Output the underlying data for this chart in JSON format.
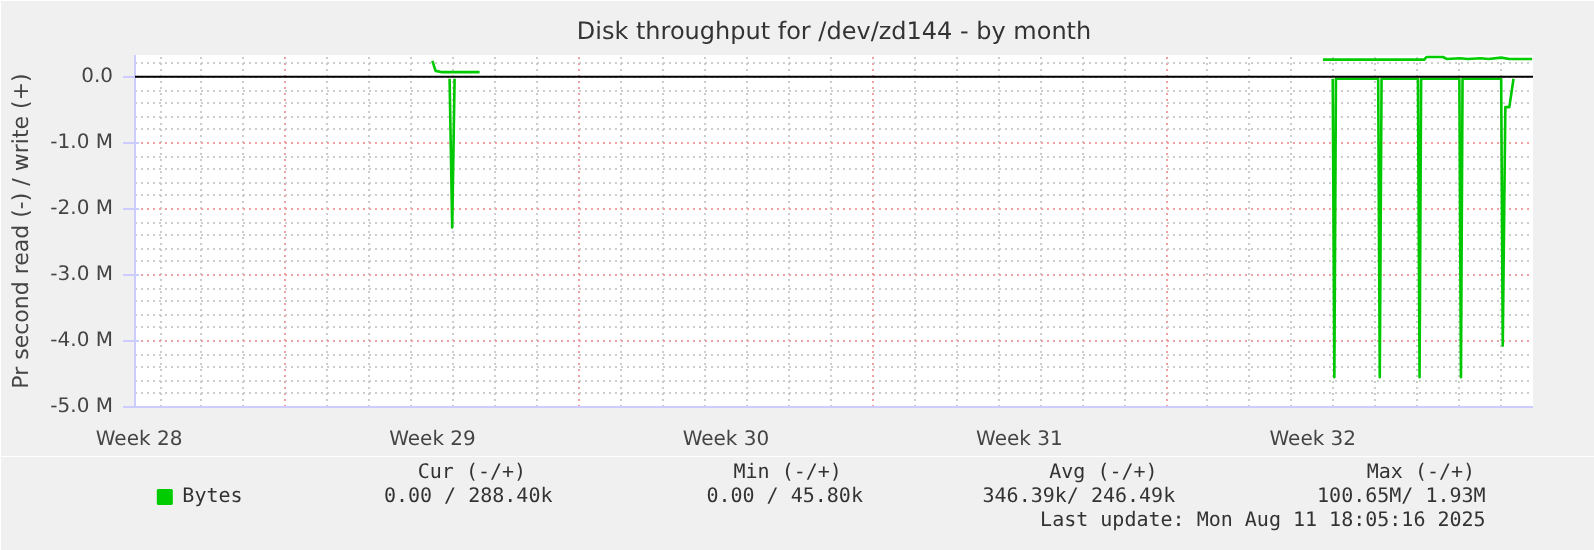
{
  "chart_data": {
    "type": "line",
    "title": "Disk throughput for /dev/zd144 - by month",
    "ylabel": "Pr second read (-) / write (+)",
    "xlim": [
      "2025-07-09T09:40",
      "2025-08-11T18:05"
    ],
    "xticks": [
      {
        "value": "2025-07-09T12:00",
        "label": "Week 28"
      },
      {
        "value": "2025-07-16T12:00",
        "label": "Week 29"
      },
      {
        "value": "2025-07-23T12:00",
        "label": "Week 30"
      },
      {
        "value": "2025-07-30T12:00",
        "label": "Week 31"
      },
      {
        "value": "2025-08-06T12:00",
        "label": "Week 32"
      },
      {
        "value": "2025-07-13",
        "label": null
      },
      {
        "value": "2025-07-20",
        "label": null
      },
      {
        "value": "2025-07-27",
        "label": null
      },
      {
        "value": "2025-08-03",
        "label": null
      }
    ],
    "ylim": [
      -5.0,
      0.33
    ],
    "yticks": [
      {
        "value": -5,
        "label": "-5.0 M"
      },
      {
        "value": -4,
        "label": "-4.0 M"
      },
      {
        "value": -3,
        "label": "-3.0 M"
      },
      {
        "value": -2,
        "label": "-2.0 M"
      },
      {
        "value": -1,
        "label": "-1.0 M"
      },
      {
        "value": 0,
        "label": "0.0"
      }
    ],
    "grid": true,
    "legend": "bottom",
    "ref_lines": [
      {
        "axis": "y",
        "value": 0,
        "label": null,
        "color": "#000000"
      }
    ],
    "series": [
      {
        "name": "Bytes",
        "color": "#00cc00",
        "x": [
          "2025-07-16T11:55",
          "2025-07-16T13:46",
          "2025-07-16T17:40",
          "2025-07-17T14:57",
          "2025-07-25T00:00",
          "2025-08-06T17:50",
          "2025-08-09T03:52",
          "2025-08-09T05:06",
          "2025-08-09T14:28",
          "2025-08-09T16:52",
          "2025-08-10T00:04",
          "2025-08-10T04:52",
          "2025-08-10T12:04",
          "2025-08-10T16:38",
          "2025-08-10T23:50",
          "2025-08-11T04:38",
          "2025-08-11T17:35"
        ],
        "values": [
          0.24,
          0.09,
          0.07,
          0.07,
          null,
          0.26,
          0.26,
          0.3,
          0.3,
          0.27,
          0.28,
          0.27,
          0.28,
          0.27,
          0.29,
          0.27,
          0.27
        ]
      },
      {
        "color": "#00c800",
        "x": [
          "2025-07-16T21:47",
          "2025-07-16T23:17",
          "2025-07-17T00:39",
          "2025-07-18T00:00",
          "2025-08-06T23:25",
          "2025-08-07T00:21",
          "2025-08-07T01:16",
          "2025-08-08T01:26",
          "2025-08-08T02:21",
          "2025-08-08T03:23",
          "2025-08-09T00:12",
          "2025-08-09T01:08",
          "2025-08-09T02:02",
          "2025-08-09T23:55",
          "2025-08-10T00:50",
          "2025-08-10T01:45",
          "2025-08-10T23:51",
          "2025-08-11T00:46",
          "2025-08-11T02:15",
          "2025-08-11T04:32",
          "2025-08-11T06:56"
        ],
        "values": [
          -0.03,
          -2.28,
          -0.03,
          null,
          -0.03,
          -4.55,
          -0.03,
          -0.03,
          -4.55,
          -0.03,
          -0.03,
          -4.55,
          -0.03,
          -0.03,
          -4.55,
          -0.03,
          -0.03,
          -4.07,
          -0.46,
          -0.46,
          -0.03
        ]
      }
    ],
    "annotations": [
      "Cur (-/+)",
      "Min (-/+)",
      "Avg (-/+)",
      "Max (-/+)",
      "0.00 / 288.40k",
      "0.00 / 45.80k",
      "346.39k/ 246.49k",
      "100.65M/ 1.93M",
      "Last update: Mon Aug 11 18:05:16 2025"
    ]
  }
}
